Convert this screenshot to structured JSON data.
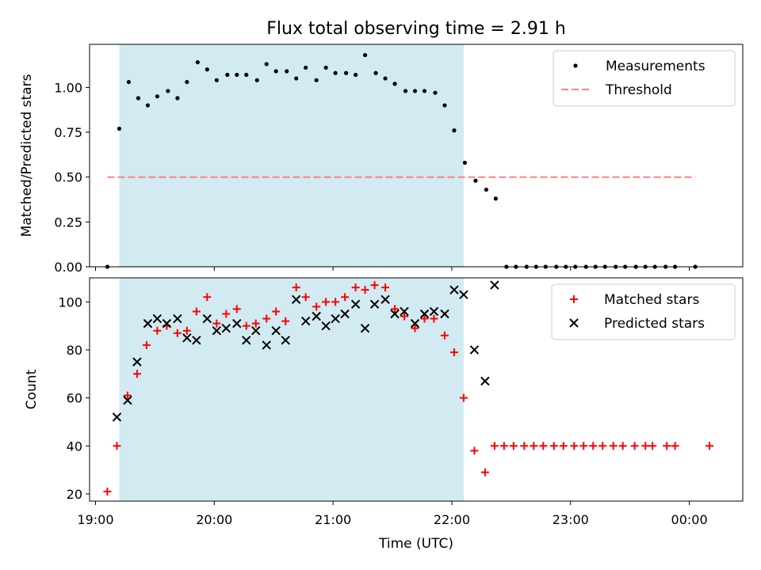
{
  "title": "Flux total observing time = 2.91 h",
  "x_axis": {
    "label": "Time (UTC)",
    "unit": "hours UTC",
    "range": [
      18.95,
      24.45
    ],
    "ticks": [
      {
        "value": 19,
        "label": "19:00"
      },
      {
        "value": 20,
        "label": "20:00"
      },
      {
        "value": 21,
        "label": "21:00"
      },
      {
        "value": 22,
        "label": "22:00"
      },
      {
        "value": 23,
        "label": "23:00"
      },
      {
        "value": 24,
        "label": "00:00"
      }
    ]
  },
  "observing_window": {
    "start": 19.2,
    "end": 22.1,
    "color": "#add8e6"
  },
  "chart_data": [
    {
      "type": "scatter",
      "ylabel": "Matched/Predicted stars",
      "ylim": [
        0,
        1.24
      ],
      "yticks": [
        {
          "value": 0,
          "label": "0.00"
        },
        {
          "value": 0.25,
          "label": "0.25"
        },
        {
          "value": 0.5,
          "label": "0.50"
        },
        {
          "value": 0.75,
          "label": "0.75"
        },
        {
          "value": 1.0,
          "label": "1.00"
        }
      ],
      "legend_position": "top-right",
      "series": [
        {
          "name": "Measurements",
          "marker": "dot",
          "color": "#000000",
          "points": [
            [
              19.1,
              0.0
            ],
            [
              19.2,
              0.77
            ],
            [
              19.28,
              1.03
            ],
            [
              19.36,
              0.94
            ],
            [
              19.44,
              0.9
            ],
            [
              19.52,
              0.95
            ],
            [
              19.61,
              0.98
            ],
            [
              19.69,
              0.94
            ],
            [
              19.77,
              1.03
            ],
            [
              19.86,
              1.14
            ],
            [
              19.94,
              1.1
            ],
            [
              20.02,
              1.04
            ],
            [
              20.11,
              1.07
            ],
            [
              20.19,
              1.07
            ],
            [
              20.27,
              1.07
            ],
            [
              20.36,
              1.04
            ],
            [
              20.44,
              1.13
            ],
            [
              20.52,
              1.09
            ],
            [
              20.61,
              1.09
            ],
            [
              20.69,
              1.05
            ],
            [
              20.77,
              1.11
            ],
            [
              20.86,
              1.04
            ],
            [
              20.94,
              1.11
            ],
            [
              21.02,
              1.08
            ],
            [
              21.11,
              1.08
            ],
            [
              21.19,
              1.07
            ],
            [
              21.27,
              1.18
            ],
            [
              21.36,
              1.08
            ],
            [
              21.44,
              1.05
            ],
            [
              21.52,
              1.02
            ],
            [
              21.61,
              0.98
            ],
            [
              21.69,
              0.98
            ],
            [
              21.77,
              0.98
            ],
            [
              21.86,
              0.97
            ],
            [
              21.94,
              0.9
            ],
            [
              22.02,
              0.76
            ],
            [
              22.11,
              0.58
            ],
            [
              22.2,
              0.48
            ],
            [
              22.29,
              0.43
            ],
            [
              22.37,
              0.38
            ],
            [
              22.46,
              0.0
            ],
            [
              22.54,
              0.0
            ],
            [
              22.63,
              0.0
            ],
            [
              22.71,
              0.0
            ],
            [
              22.79,
              0.0
            ],
            [
              22.88,
              0.0
            ],
            [
              22.96,
              0.0
            ],
            [
              23.04,
              0.0
            ],
            [
              23.13,
              0.0
            ],
            [
              23.21,
              0.0
            ],
            [
              23.29,
              0.0
            ],
            [
              23.38,
              0.0
            ],
            [
              23.46,
              0.0
            ],
            [
              23.55,
              0.0
            ],
            [
              23.63,
              0.0
            ],
            [
              23.71,
              0.0
            ],
            [
              23.8,
              0.0
            ],
            [
              23.88,
              0.0
            ],
            [
              24.05,
              0.0
            ]
          ]
        },
        {
          "name": "Threshold",
          "marker": "dashed-line",
          "color": "#ff8080",
          "points": [
            [
              19.1,
              0.5
            ],
            [
              24.05,
              0.5
            ]
          ]
        }
      ]
    },
    {
      "type": "scatter",
      "ylabel": "Count",
      "ylim": [
        17,
        110
      ],
      "yticks": [
        {
          "value": 20,
          "label": "20"
        },
        {
          "value": 40,
          "label": "40"
        },
        {
          "value": 60,
          "label": "60"
        },
        {
          "value": 80,
          "label": "80"
        },
        {
          "value": 100,
          "label": "100"
        }
      ],
      "legend_position": "top-right",
      "series": [
        {
          "name": "Matched stars",
          "marker": "plus",
          "color": "#ff0000",
          "points": [
            [
              19.1,
              21
            ],
            [
              19.18,
              40
            ],
            [
              19.27,
              61
            ],
            [
              19.35,
              70
            ],
            [
              19.43,
              82
            ],
            [
              19.52,
              88
            ],
            [
              19.6,
              90
            ],
            [
              19.69,
              87
            ],
            [
              19.77,
              88
            ],
            [
              19.85,
              96
            ],
            [
              19.94,
              102
            ],
            [
              20.02,
              91
            ],
            [
              20.1,
              95
            ],
            [
              20.19,
              97
            ],
            [
              20.27,
              90
            ],
            [
              20.35,
              91
            ],
            [
              20.44,
              93
            ],
            [
              20.52,
              96
            ],
            [
              20.6,
              92
            ],
            [
              20.69,
              106
            ],
            [
              20.77,
              102
            ],
            [
              20.86,
              98
            ],
            [
              20.94,
              100
            ],
            [
              21.02,
              100
            ],
            [
              21.1,
              102
            ],
            [
              21.19,
              106
            ],
            [
              21.27,
              105
            ],
            [
              21.35,
              107
            ],
            [
              21.44,
              106
            ],
            [
              21.52,
              97
            ],
            [
              21.6,
              94
            ],
            [
              21.69,
              89
            ],
            [
              21.77,
              93
            ],
            [
              21.85,
              93
            ],
            [
              21.94,
              86
            ],
            [
              22.02,
              79
            ],
            [
              22.1,
              60
            ],
            [
              22.19,
              38
            ],
            [
              22.28,
              29
            ],
            [
              22.36,
              40
            ],
            [
              22.44,
              40
            ],
            [
              22.52,
              40
            ],
            [
              22.61,
              40
            ],
            [
              22.69,
              40
            ],
            [
              22.77,
              40
            ],
            [
              22.86,
              40
            ],
            [
              22.94,
              40
            ],
            [
              23.03,
              40
            ],
            [
              23.11,
              40
            ],
            [
              23.19,
              40
            ],
            [
              23.27,
              40
            ],
            [
              23.36,
              40
            ],
            [
              23.44,
              40
            ],
            [
              23.54,
              40
            ],
            [
              23.63,
              40
            ],
            [
              23.69,
              40
            ],
            [
              23.81,
              40
            ],
            [
              23.88,
              40
            ],
            [
              24.17,
              40
            ]
          ]
        },
        {
          "name": "Predicted stars",
          "marker": "x",
          "color": "#000000",
          "points": [
            [
              19.18,
              52
            ],
            [
              19.27,
              59
            ],
            [
              19.35,
              75
            ],
            [
              19.44,
              91
            ],
            [
              19.52,
              93
            ],
            [
              19.6,
              91
            ],
            [
              19.69,
              93
            ],
            [
              19.77,
              85
            ],
            [
              19.85,
              84
            ],
            [
              19.94,
              93
            ],
            [
              20.02,
              88
            ],
            [
              20.1,
              89
            ],
            [
              20.19,
              91
            ],
            [
              20.27,
              84
            ],
            [
              20.35,
              88
            ],
            [
              20.44,
              82
            ],
            [
              20.52,
              88
            ],
            [
              20.6,
              84
            ],
            [
              20.69,
              101
            ],
            [
              20.77,
              92
            ],
            [
              20.86,
              94
            ],
            [
              20.94,
              90
            ],
            [
              21.02,
              93
            ],
            [
              21.1,
              95
            ],
            [
              21.19,
              99
            ],
            [
              21.27,
              89
            ],
            [
              21.35,
              99
            ],
            [
              21.44,
              101
            ],
            [
              21.52,
              95
            ],
            [
              21.6,
              96
            ],
            [
              21.69,
              91
            ],
            [
              21.77,
              95
            ],
            [
              21.85,
              96
            ],
            [
              21.94,
              95
            ],
            [
              22.02,
              105
            ],
            [
              22.1,
              103
            ],
            [
              22.19,
              80
            ],
            [
              22.28,
              67
            ],
            [
              22.36,
              107
            ]
          ]
        }
      ]
    }
  ]
}
